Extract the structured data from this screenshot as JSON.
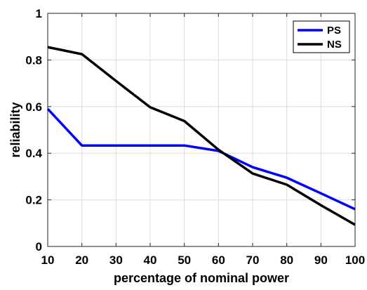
{
  "chart_data": {
    "type": "line",
    "title": "",
    "xlabel": "percentage of nominal power",
    "ylabel": "reliability",
    "xlim": [
      10,
      100
    ],
    "ylim": [
      0,
      1
    ],
    "xticks": [
      10,
      20,
      30,
      40,
      50,
      60,
      70,
      80,
      90,
      100
    ],
    "yticks": [
      0,
      0.2,
      0.4,
      0.6,
      0.8,
      1
    ],
    "xtick_labels": [
      "10",
      "20",
      "30",
      "40",
      "50",
      "60",
      "70",
      "80",
      "90",
      "100"
    ],
    "ytick_labels": [
      "0",
      "0.2",
      "0.4",
      "0.6",
      "0.8",
      "1"
    ],
    "grid": true,
    "legend_position": "top-right",
    "x": [
      10,
      20,
      30,
      40,
      50,
      60,
      70,
      80,
      90,
      100
    ],
    "series": [
      {
        "name": "PS",
        "color": "#0000ff",
        "values": [
          0.59,
          0.433,
          0.433,
          0.433,
          0.433,
          0.41,
          0.34,
          0.295,
          0.228,
          0.16
        ]
      },
      {
        "name": "NS",
        "color": "#000000",
        "values": [
          0.855,
          0.825,
          0.71,
          0.597,
          0.538,
          0.415,
          0.313,
          0.265,
          0.177,
          0.093
        ]
      }
    ]
  }
}
